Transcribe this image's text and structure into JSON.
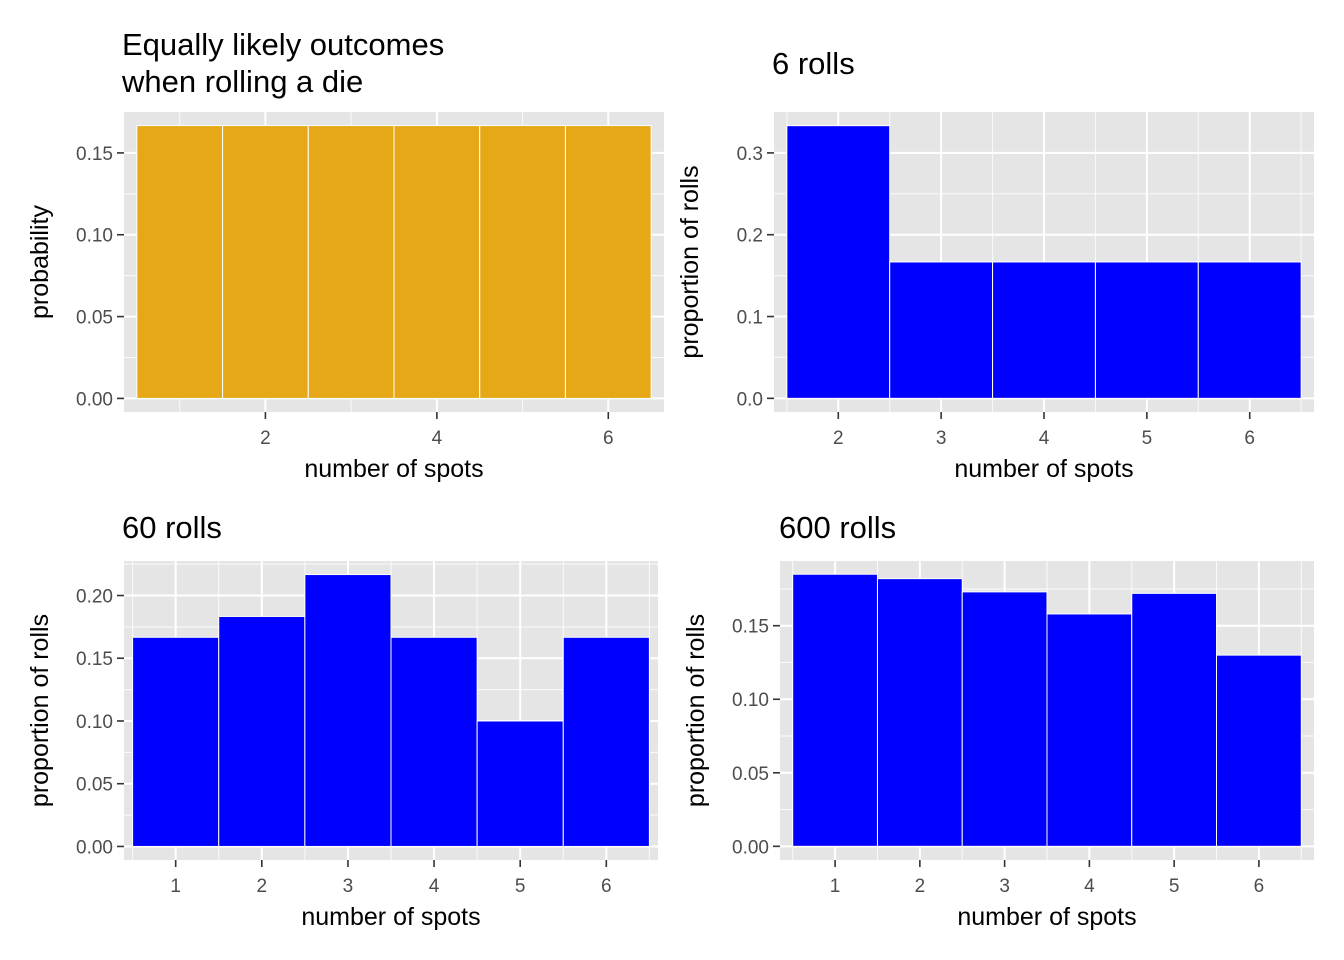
{
  "chart_data": [
    {
      "type": "bar",
      "title_lines": [
        "Equally likely outcomes",
        " when rolling a die"
      ],
      "xlabel": "number of spots",
      "ylabel": "probability",
      "categories": [
        1,
        2,
        3,
        4,
        5,
        6
      ],
      "values": [
        0.1667,
        0.1667,
        0.1667,
        0.1667,
        0.1667,
        0.1667
      ],
      "xticks": [
        2,
        4,
        6
      ],
      "xtick_labels": [
        "2",
        "4",
        "6"
      ],
      "xlim": [
        0.35,
        6.65
      ],
      "yticks": [
        0,
        0.05,
        0.1,
        0.15
      ],
      "ytick_labels": [
        "0.00",
        "0.05",
        "0.10",
        "0.15"
      ],
      "ylim": [
        -0.0083,
        0.175
      ],
      "color": "#E6A817",
      "grid": true
    },
    {
      "type": "bar",
      "title_lines": [
        "6 rolls"
      ],
      "xlabel": "number of spots",
      "ylabel": "proportion of rolls",
      "categories": [
        2,
        3,
        4,
        5,
        6
      ],
      "values": [
        0.3333,
        0.1667,
        0.1667,
        0.1667,
        0.1667
      ],
      "xticks": [
        2,
        3,
        4,
        5,
        6
      ],
      "xtick_labels": [
        "2",
        "3",
        "4",
        "5",
        "6"
      ],
      "xlim": [
        1.375,
        6.625
      ],
      "yticks": [
        0,
        0.1,
        0.2,
        0.3
      ],
      "ytick_labels": [
        "0.0",
        "0.1",
        "0.2",
        "0.3"
      ],
      "ylim": [
        -0.0167,
        0.35
      ],
      "color": "#0000FF",
      "grid": true
    },
    {
      "type": "bar",
      "title_lines": [
        "60 rolls"
      ],
      "xlabel": "number of spots",
      "ylabel": "proportion of rolls",
      "categories": [
        1,
        2,
        3,
        4,
        5,
        6
      ],
      "values": [
        0.1667,
        0.1833,
        0.2167,
        0.1667,
        0.1,
        0.1667
      ],
      "xticks": [
        1,
        2,
        3,
        4,
        5,
        6
      ],
      "xtick_labels": [
        "1",
        "2",
        "3",
        "4",
        "5",
        "6"
      ],
      "xlim": [
        0.4,
        6.6
      ],
      "yticks": [
        0,
        0.05,
        0.1,
        0.15,
        0.2
      ],
      "ytick_labels": [
        "0.00",
        "0.05",
        "0.10",
        "0.15",
        "0.20"
      ],
      "ylim": [
        -0.0108,
        0.2275
      ],
      "color": "#0000FF",
      "grid": true
    },
    {
      "type": "bar",
      "title_lines": [
        "600 rolls"
      ],
      "xlabel": "number of spots",
      "ylabel": "proportion of rolls",
      "categories": [
        1,
        2,
        3,
        4,
        5,
        6
      ],
      "values": [
        0.185,
        0.182,
        0.173,
        0.158,
        0.172,
        0.13
      ],
      "xticks": [
        1,
        2,
        3,
        4,
        5,
        6
      ],
      "xtick_labels": [
        "1",
        "2",
        "3",
        "4",
        "5",
        "6"
      ],
      "xlim": [
        0.35,
        6.65
      ],
      "yticks": [
        0,
        0.05,
        0.1,
        0.15
      ],
      "ytick_labels": [
        "0.00",
        "0.05",
        "0.10",
        "0.15"
      ],
      "ylim": [
        -0.0093,
        0.194
      ],
      "color": "#0000FF",
      "grid": true
    }
  ]
}
